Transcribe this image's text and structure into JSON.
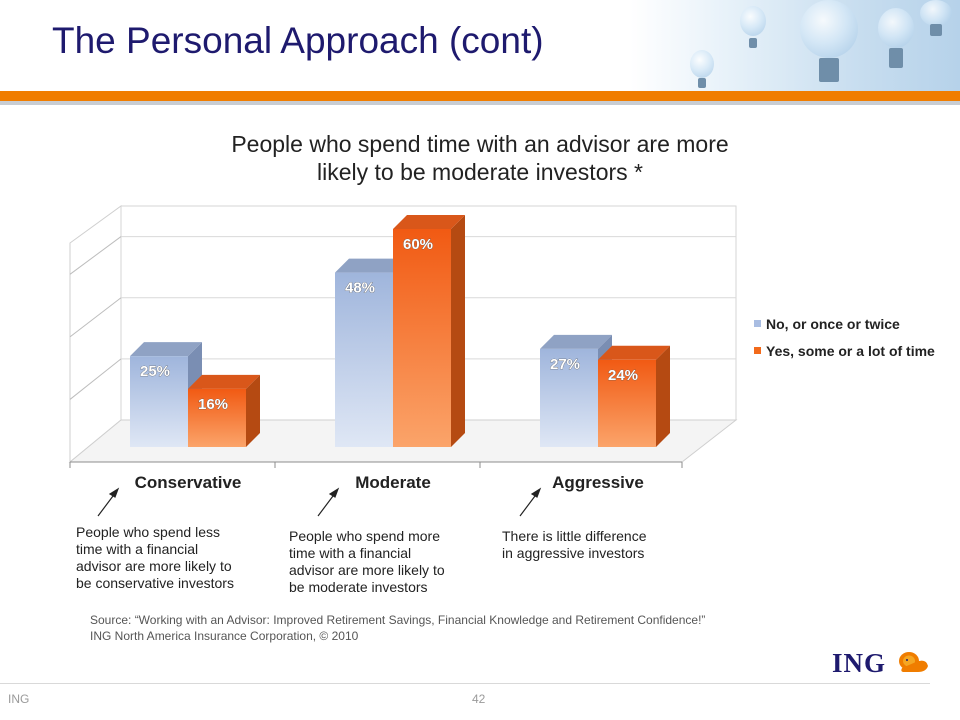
{
  "slide": {
    "title": "The Personal Approach (cont)",
    "subtitle_line1": "People who spend time with an advisor are more",
    "subtitle_line2": "likely to be moderate investors *",
    "notes": [
      [
        "People who spend less",
        "time with a financial",
        "advisor are more likely to",
        "be conservative investors"
      ],
      [
        "People who spend more",
        "time with a financial",
        "advisor are more likely to",
        "be moderate investors"
      ],
      [
        "There is little difference",
        "in aggressive investors"
      ]
    ],
    "source_line1": "Source: “Working with an Advisor: Improved Retirement Savings, Financial Knowledge and Retirement Confidence!”",
    "source_line2": "ING North America Insurance Corporation, © 2010",
    "footer_left": "ING",
    "page_number": "42",
    "logo_text": "ING"
  },
  "colors": {
    "title": "#1e1a6e",
    "accent": "#f07d00",
    "series1": "#b7c8e6",
    "series2": "#f26a1b"
  },
  "chart_data": {
    "type": "bar",
    "categories": [
      "Conservative",
      "Moderate",
      "Aggressive"
    ],
    "series": [
      {
        "name": "No, or once or twice",
        "values": [
          25,
          48,
          27
        ],
        "labels": [
          "25%",
          "48%",
          "27%"
        ]
      },
      {
        "name": "Yes, some or a lot of time",
        "values": [
          16,
          60,
          24
        ],
        "labels": [
          "16%",
          "60%",
          "24%"
        ]
      }
    ],
    "ylim": [
      0,
      70
    ],
    "grid": true,
    "legend": "right",
    "three_d": true
  }
}
